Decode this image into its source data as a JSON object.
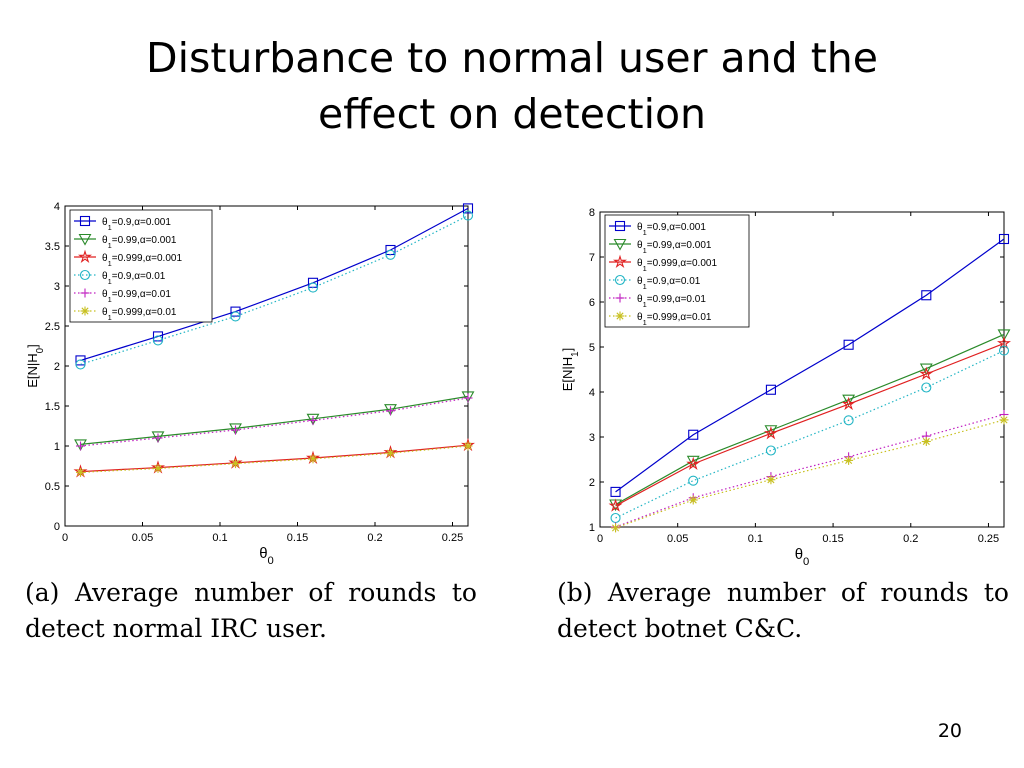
{
  "slide": {
    "title_line1": "Disturbance to normal user and the",
    "title_line2": "effect on detection",
    "slide_number": "20"
  },
  "captions": {
    "a": {
      "line1": [
        "(a)",
        "Average",
        "number",
        "of",
        "rounds",
        "to"
      ],
      "line2": "detect normal IRC user."
    },
    "b": {
      "line1": [
        "(b)",
        "Average",
        "number",
        "of",
        "rounds",
        "to"
      ],
      "line2": "detect botnet C&C."
    }
  },
  "chart_data": [
    {
      "type": "line",
      "ylabel": "E[N|H",
      "ylabel_sub": "0",
      "ylabel_end": "]",
      "xlabel": "θ",
      "xlabel_sub": "0",
      "xlim": [
        0,
        0.26
      ],
      "ylim": [
        0,
        4
      ],
      "xticks": [
        0,
        0.05,
        0.1,
        0.15,
        0.2,
        0.25
      ],
      "xtick_labels": [
        "0",
        "0.05",
        "0.1",
        "0.15",
        "0.2",
        "0.25"
      ],
      "yticks": [
        0,
        0.5,
        1,
        1.5,
        2,
        2.5,
        3,
        3.5,
        4
      ],
      "ytick_labels": [
        "0",
        "0.5",
        "1",
        "1.5",
        "2",
        "2.5",
        "3",
        "3.5",
        "4"
      ],
      "grid": false,
      "legend_position": "top-left",
      "x": [
        0.01,
        0.06,
        0.11,
        0.16,
        0.21,
        0.26
      ],
      "series": [
        {
          "name": "θ1=0.9,α=0.001",
          "legend_symbol": "θ",
          "legend_sub": "1",
          "legend_text": "=0.9,α=0.001",
          "color": "#0000cc",
          "marker": "square",
          "dash": "solid",
          "values": [
            2.07,
            2.37,
            2.68,
            3.04,
            3.45,
            3.97
          ]
        },
        {
          "name": "θ1=0.99,α=0.001",
          "legend_symbol": "θ",
          "legend_sub": "1",
          "legend_text": "=0.99,α=0.001",
          "color": "#2a8a2a",
          "marker": "triangle-down",
          "dash": "solid",
          "values": [
            1.02,
            1.12,
            1.22,
            1.34,
            1.46,
            1.62
          ]
        },
        {
          "name": "θ1=0.999,α=0.001",
          "legend_symbol": "θ",
          "legend_sub": "1",
          "legend_text": "=0.999,α=0.001",
          "color": "#e02020",
          "marker": "star",
          "dash": "solid",
          "values": [
            0.68,
            0.73,
            0.79,
            0.85,
            0.92,
            1.01
          ]
        },
        {
          "name": "θ1=0.9,α=0.01",
          "legend_symbol": "θ",
          "legend_sub": "1",
          "legend_text": "=0.9,α=0.01",
          "color": "#22b5c5",
          "marker": "circle",
          "dash": "dotted",
          "values": [
            2.02,
            2.32,
            2.62,
            2.98,
            3.39,
            3.88
          ]
        },
        {
          "name": "θ1=0.99,α=0.01",
          "legend_symbol": "θ",
          "legend_sub": "1",
          "legend_text": "=0.99,α=0.01",
          "color": "#c020c0",
          "marker": "plus",
          "dash": "dotted",
          "values": [
            1.0,
            1.1,
            1.2,
            1.32,
            1.44,
            1.6
          ]
        },
        {
          "name": "θ1=0.999,α=0.01",
          "legend_symbol": "θ",
          "legend_sub": "1",
          "legend_text": "=0.999,α=0.01",
          "color": "#c8c020",
          "marker": "asterisk",
          "dash": "dotted",
          "values": [
            0.67,
            0.72,
            0.78,
            0.84,
            0.91,
            1.0
          ]
        }
      ]
    },
    {
      "type": "line",
      "ylabel": "E[N|H",
      "ylabel_sub": "1",
      "ylabel_end": "]",
      "xlabel": "θ",
      "xlabel_sub": "0",
      "xlim": [
        0,
        0.26
      ],
      "ylim": [
        1,
        8
      ],
      "xticks": [
        0,
        0.05,
        0.1,
        0.15,
        0.2,
        0.25
      ],
      "xtick_labels": [
        "0",
        "0.05",
        "0.1",
        "0.15",
        "0.2",
        "0.25"
      ],
      "yticks": [
        1,
        2,
        3,
        4,
        5,
        6,
        7,
        8
      ],
      "ytick_labels": [
        "1",
        "2",
        "3",
        "4",
        "5",
        "6",
        "7",
        "8"
      ],
      "grid": false,
      "legend_position": "top-left",
      "x": [
        0.01,
        0.06,
        0.11,
        0.16,
        0.21,
        0.26
      ],
      "series": [
        {
          "name": "θ1=0.9,α=0.001",
          "legend_symbol": "θ",
          "legend_sub": "1",
          "legend_text": "=0.9,α=0.001",
          "color": "#0000cc",
          "marker": "square",
          "dash": "solid",
          "values": [
            1.78,
            3.05,
            4.05,
            5.05,
            6.15,
            7.4
          ]
        },
        {
          "name": "θ1=0.99,α=0.001",
          "legend_symbol": "θ",
          "legend_sub": "1",
          "legend_text": "=0.99,α=0.001",
          "color": "#2a8a2a",
          "marker": "triangle-down",
          "dash": "solid",
          "values": [
            1.5,
            2.47,
            3.15,
            3.83,
            4.52,
            5.28
          ]
        },
        {
          "name": "θ1=0.999,α=0.001",
          "legend_symbol": "θ",
          "legend_sub": "1",
          "legend_text": "=0.999,α=0.001",
          "color": "#e02020",
          "marker": "star",
          "dash": "solid",
          "values": [
            1.47,
            2.4,
            3.08,
            3.73,
            4.4,
            5.08
          ]
        },
        {
          "name": "θ1=0.9,α=0.01",
          "legend_symbol": "θ",
          "legend_sub": "1",
          "legend_text": "=0.9,α=0.01",
          "color": "#22b5c5",
          "marker": "circle",
          "dash": "dotted",
          "values": [
            1.2,
            2.03,
            2.7,
            3.37,
            4.1,
            4.92
          ]
        },
        {
          "name": "θ1=0.99,α=0.01",
          "legend_symbol": "θ",
          "legend_sub": "1",
          "legend_text": "=0.99,α=0.01",
          "color": "#c020c0",
          "marker": "plus",
          "dash": "dotted",
          "values": [
            1.0,
            1.65,
            2.12,
            2.56,
            3.02,
            3.5
          ]
        },
        {
          "name": "θ1=0.999,α=0.01",
          "legend_symbol": "θ",
          "legend_sub": "1",
          "legend_text": "=0.999,α=0.01",
          "color": "#c8c020",
          "marker": "asterisk",
          "dash": "dotted",
          "values": [
            0.98,
            1.6,
            2.05,
            2.48,
            2.9,
            3.38
          ]
        }
      ]
    }
  ]
}
